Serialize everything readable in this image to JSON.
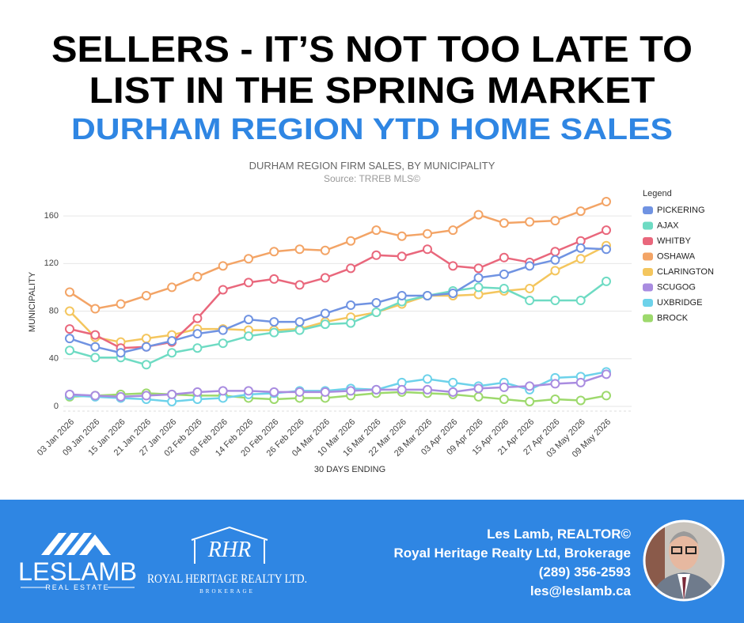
{
  "header": {
    "title_lines": [
      "SELLERS - IT’S NOT TOO LATE TO",
      "LIST IN THE SPRING MARKET"
    ],
    "subtitle": "DURHAM REGION YTD HOME SALES"
  },
  "chart_data": {
    "type": "line",
    "title": "DURHAM REGION FIRM SALES, BY MUNICIPALITY",
    "subtitle": "Source: TRREB MLS©",
    "x_label": "30 DAYS ENDING",
    "y_label": "MUNICIPALITY",
    "legend_title": "Legend",
    "legend": "right",
    "grid": true,
    "categories": [
      "03 Jan 2026",
      "09 Jan 2026",
      "15 Jan 2026",
      "21 Jan 2026",
      "27 Jan 2026",
      "02 Feb 2026",
      "08 Feb 2026",
      "14 Feb 2026",
      "20 Feb 2026",
      "26 Feb 2026",
      "04 Mar 2026",
      "10 Mar 2026",
      "16 Mar 2026",
      "22 Mar 2026",
      "28 Mar 2026",
      "03 Apr 2026",
      "09 Apr 2026",
      "15 Apr 2026",
      "21 Apr 2026",
      "27 Apr 2026",
      "03 May 2026",
      "09 May 2026"
    ],
    "ylim": [
      -4,
      180
    ],
    "yticks": [
      0,
      40,
      80,
      120,
      160
    ],
    "series": [
      {
        "name": "PICKERING",
        "color": "#7093e2",
        "values": [
          57,
          50,
          45,
          50,
          55,
          61,
          64,
          73,
          71,
          71,
          78,
          85,
          87,
          93,
          93,
          95,
          108,
          111,
          118,
          123,
          133,
          132
        ]
      },
      {
        "name": "AJAX",
        "color": "#6edbc3",
        "values": [
          47,
          41,
          41,
          35,
          45,
          49,
          53,
          59,
          62,
          64,
          69,
          70,
          79,
          88,
          93,
          97,
          100,
          99,
          89,
          89,
          89,
          105
        ]
      },
      {
        "name": "WHITBY",
        "color": "#e9677c",
        "values": [
          65,
          60,
          49,
          50,
          54,
          74,
          98,
          104,
          107,
          102,
          108,
          116,
          127,
          126,
          132,
          118,
          116,
          125,
          121,
          130,
          139,
          148
        ]
      },
      {
        "name": "OSHAWA",
        "color": "#f3a466",
        "values": [
          96,
          82,
          86,
          93,
          100,
          109,
          118,
          124,
          130,
          132,
          131,
          139,
          148,
          143,
          145,
          148,
          161,
          154,
          155,
          156,
          164,
          172
        ]
      },
      {
        "name": "CLARINGTON",
        "color": "#f4c65e",
        "values": [
          80,
          58,
          54,
          57,
          60,
          65,
          65,
          64,
          64,
          65,
          71,
          75,
          79,
          86,
          93,
          93,
          94,
          97,
          99,
          114,
          124,
          135
        ]
      },
      {
        "name": "SCUGOG",
        "color": "#a98ce0",
        "values": [
          10,
          9,
          8,
          9,
          10,
          12,
          13,
          13,
          12,
          12,
          12,
          13,
          14,
          14,
          14,
          12,
          15,
          16,
          17,
          19,
          20,
          27
        ]
      },
      {
        "name": "UXBRIDGE",
        "color": "#6dd2ea",
        "values": [
          9,
          8,
          7,
          6,
          4,
          6,
          7,
          10,
          11,
          13,
          13,
          15,
          14,
          20,
          23,
          20,
          17,
          20,
          14,
          24,
          25,
          29
        ]
      },
      {
        "name": "BROCK",
        "color": "#9dd96c",
        "values": [
          8,
          9,
          10,
          11,
          10,
          9,
          9,
          7,
          6,
          7,
          7,
          9,
          11,
          12,
          11,
          10,
          8,
          6,
          4,
          6,
          5,
          9
        ]
      }
    ]
  },
  "footer": {
    "brand": "LESLAMB",
    "brand_tagline": "REAL ESTATE",
    "brokerage_mark": "RHR",
    "brokerage_name": "ROYAL HERITAGE REALTY LTD.",
    "brokerage_tagline": "BROKERAGE",
    "contact": [
      "Les Lamb, REALTOR©",
      "Royal Heritage Realty Ltd, Brokerage",
      "(289) 356-2593",
      "les@leslamb.ca"
    ]
  }
}
